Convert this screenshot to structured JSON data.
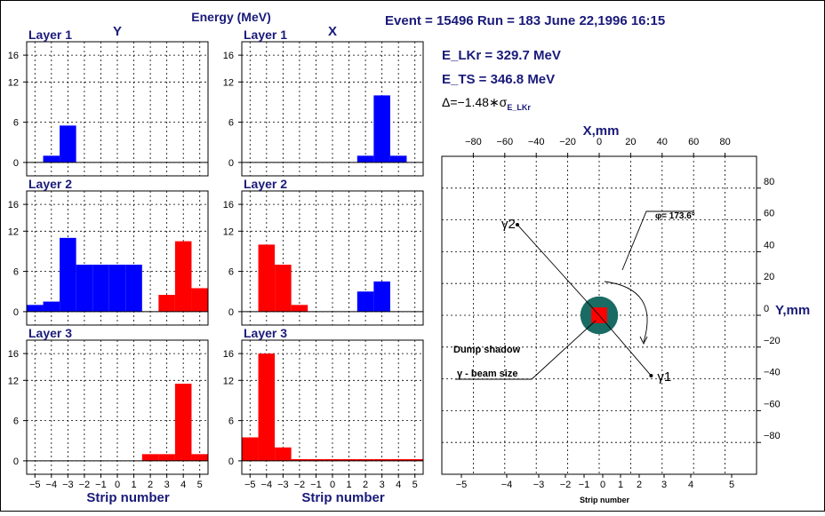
{
  "header": {
    "energy_title": "Energy (MeV)",
    "event_info": "Event = 15496  Run = 183  June 22,1996  16:15",
    "y_label": "Y",
    "x_label": "X"
  },
  "info": {
    "e_lkr": "E_LKr = 329.7 MeV",
    "e_ts": "E_TS  =  346.8 MeV",
    "delta_main": "Δ=−1.48∗σ",
    "delta_sub": "E_LKr"
  },
  "colors": {
    "blue": "#0000ff",
    "red": "#ff0000",
    "navy": "#1a1a7a",
    "teal": "#1a6b63"
  },
  "chart_data": [
    {
      "type": "bar",
      "panel": "Y",
      "title": "Layer 1",
      "xlabel": "",
      "ylabel": "",
      "xlim": [
        -5.5,
        5.5
      ],
      "ylim": [
        -2,
        18
      ],
      "yticks": [
        0,
        6,
        12,
        16
      ],
      "xticks": [],
      "series": [
        {
          "color": "blue",
          "bins": [
            [
              -4.5,
              1
            ],
            [
              -3.5,
              5.5
            ]
          ]
        }
      ]
    },
    {
      "type": "bar",
      "panel": "X",
      "title": "Layer 1",
      "xlabel": "",
      "ylabel": "",
      "xlim": [
        -5.5,
        5.5
      ],
      "ylim": [
        -2,
        18
      ],
      "yticks": [
        0,
        6,
        12,
        16
      ],
      "xticks": [],
      "series": [
        {
          "color": "blue",
          "bins": [
            [
              1.5,
              1
            ],
            [
              2.5,
              10
            ],
            [
              3.5,
              1
            ]
          ]
        }
      ]
    },
    {
      "type": "bar",
      "panel": "Y",
      "title": "Layer 2",
      "xlabel": "",
      "ylabel": "",
      "xlim": [
        -5.5,
        5.5
      ],
      "ylim": [
        -2,
        18
      ],
      "yticks": [
        0,
        6,
        12,
        16
      ],
      "xticks": [],
      "series": [
        {
          "color": "blue",
          "bins": [
            [
              -5.5,
              1
            ],
            [
              -4.5,
              1.5
            ],
            [
              -3.5,
              11
            ],
            [
              -2.5,
              7
            ],
            [
              -1.5,
              7
            ],
            [
              -0.5,
              7
            ],
            [
              0.5,
              7
            ]
          ]
        },
        {
          "color": "red",
          "bins": [
            [
              2.5,
              2.5
            ],
            [
              3.5,
              10.5
            ],
            [
              4.5,
              3.5
            ]
          ]
        }
      ]
    },
    {
      "type": "bar",
      "panel": "X",
      "title": "Layer 2",
      "xlabel": "",
      "ylabel": "",
      "xlim": [
        -5.5,
        5.5
      ],
      "ylim": [
        -2,
        18
      ],
      "yticks": [
        0,
        6,
        12,
        16
      ],
      "xticks": [],
      "series": [
        {
          "color": "red",
          "bins": [
            [
              -4.5,
              10
            ],
            [
              -3.5,
              7
            ],
            [
              -2.5,
              1
            ]
          ]
        },
        {
          "color": "blue",
          "bins": [
            [
              1.5,
              3
            ],
            [
              2.5,
              4.5
            ]
          ]
        }
      ]
    },
    {
      "type": "bar",
      "panel": "Y",
      "title": "Layer 3",
      "xlabel": "Strip number",
      "ylabel": "",
      "xlim": [
        -5.5,
        5.5
      ],
      "ylim": [
        -2,
        18
      ],
      "yticks": [
        0,
        6,
        12,
        16
      ],
      "xticks": [
        -5,
        -4,
        -3,
        -2,
        -1,
        0,
        1,
        2,
        3,
        4,
        5
      ],
      "series": [
        {
          "color": "red",
          "bins": [
            [
              1.5,
              1
            ],
            [
              2.5,
              1
            ],
            [
              3.5,
              11.5
            ],
            [
              4.5,
              1
            ]
          ]
        }
      ]
    },
    {
      "type": "bar",
      "panel": "X",
      "title": "Layer 3",
      "xlabel": "Strip number",
      "ylabel": "",
      "xlim": [
        -5.5,
        5.5
      ],
      "ylim": [
        -2,
        18
      ],
      "yticks": [
        0,
        6,
        12,
        16
      ],
      "xticks": [
        -5,
        -4,
        -3,
        -2,
        -1,
        0,
        1,
        2,
        3,
        4,
        5
      ],
      "series": [
        {
          "color": "red",
          "bins": [
            [
              -5.5,
              3.5
            ],
            [
              -4.5,
              16
            ],
            [
              -3.5,
              2
            ],
            [
              -2.5,
              0.25
            ],
            [
              -1.5,
              0.25
            ],
            [
              -0.5,
              0.25
            ],
            [
              0.5,
              0.25
            ],
            [
              1.5,
              0.25
            ],
            [
              2.5,
              0.25
            ],
            [
              3.5,
              0.25
            ],
            [
              4.5,
              0.25
            ]
          ]
        }
      ]
    },
    {
      "type": "scatter",
      "panel": "map",
      "xlabel": "X,mm",
      "ylabel": "Y,mm",
      "bottom_label": "Strip number",
      "xlim": [
        -100,
        100
      ],
      "ylim": [
        -100,
        100
      ],
      "xticks": [
        -80,
        -60,
        -40,
        -20,
        0,
        20,
        40,
        60,
        80
      ],
      "yticks": [
        80,
        60,
        40,
        20,
        0,
        -20,
        -40,
        -60,
        -80
      ],
      "bottom_ticks": [
        -5,
        -4,
        -3,
        -2,
        -1,
        0,
        1,
        2,
        3,
        4,
        5
      ],
      "points": [
        {
          "name": "γ2",
          "x": -52,
          "y": 57
        },
        {
          "name": "γ1",
          "x": 33,
          "y": -38
        }
      ],
      "phi_label": "φ= 173.6°",
      "dump_label": "Dump shadow",
      "beam_label": "γ - beam size",
      "dump_radius_mm": 12,
      "beam_half_mm": 5
    }
  ]
}
